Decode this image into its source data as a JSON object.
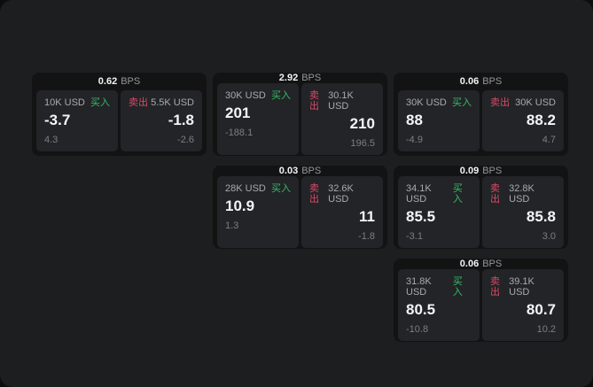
{
  "labels": {
    "bps_unit": "BPS",
    "buy": "买入",
    "sell": "卖出"
  },
  "colors": {
    "background": "#1d1e1f",
    "card": "#131314",
    "panel": "#232427",
    "buy_green": "#35bc68",
    "sell_red": "#d84a67"
  },
  "cards": [
    {
      "bps": "0.62",
      "buy": {
        "amount": "10K USD",
        "price": "-3.7",
        "delta": "4.3"
      },
      "sell": {
        "amount": "5.5K USD",
        "price": "-1.8",
        "delta": "-2.6"
      }
    },
    {
      "bps": "2.92",
      "buy": {
        "amount": "30K USD",
        "price": "201",
        "delta": "-188.1"
      },
      "sell": {
        "amount": "30.1K USD",
        "price": "210",
        "delta": "196.5"
      }
    },
    {
      "bps": "0.06",
      "buy": {
        "amount": "30K USD",
        "price": "88",
        "delta": "-4.9"
      },
      "sell": {
        "amount": "30K USD",
        "price": "88.2",
        "delta": "4.7"
      }
    },
    {
      "bps": "0.03",
      "buy": {
        "amount": "28K USD",
        "price": "10.9",
        "delta": "1.3"
      },
      "sell": {
        "amount": "32.6K USD",
        "price": "11",
        "delta": "-1.8"
      }
    },
    {
      "bps": "0.09",
      "buy": {
        "amount": "34.1K USD",
        "price": "85.5",
        "delta": "-3.1"
      },
      "sell": {
        "amount": "32.8K USD",
        "price": "85.8",
        "delta": "3.0"
      }
    },
    {
      "bps": "0.06",
      "buy": {
        "amount": "31.8K USD",
        "price": "80.5",
        "delta": "-10.8"
      },
      "sell": {
        "amount": "39.1K USD",
        "price": "80.7",
        "delta": "10.2"
      }
    }
  ]
}
